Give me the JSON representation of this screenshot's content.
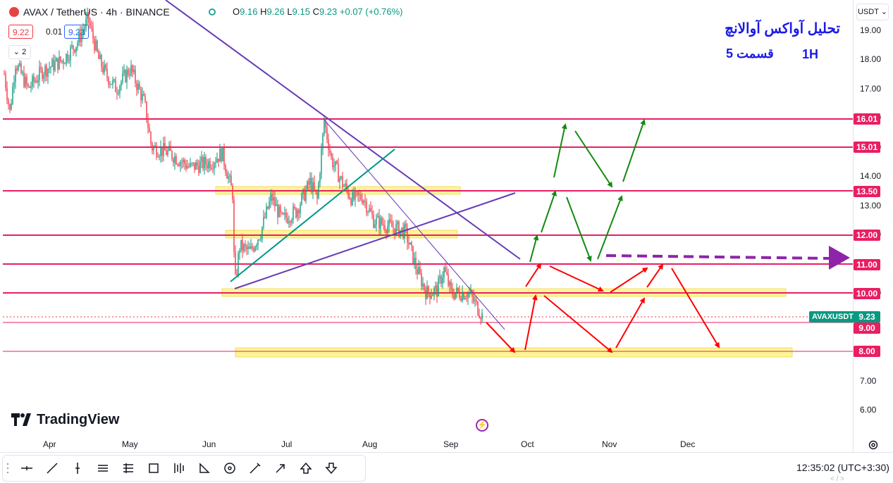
{
  "header": {
    "symbol_title": "AVAX / TetherUS · 4h · BINANCE",
    "ohlc": {
      "o_label": "O",
      "o": "9.16",
      "h_label": "H",
      "h": "9.26",
      "l_label": "L",
      "l": "9.15",
      "c_label": "C",
      "c": "9.23",
      "change": "+0.07 (+0.76%)"
    },
    "sell_price": "9.22",
    "spread": "0.01",
    "buy_price": "9.23",
    "indicators_toggle": "2",
    "currency": "USDT"
  },
  "annotations": {
    "title_fa": "تحلیل آواکس آوالانچ",
    "part_fa": "قسمت 5",
    "timeframe": "1H"
  },
  "price_axis": [
    "19.00",
    "18.00",
    "17.00",
    "16.00",
    "15.00",
    "14.00",
    "13.00",
    "12.00",
    "11.00",
    "10.00",
    "9.00",
    "8.00",
    "7.00",
    "6.00"
  ],
  "level_tags": [
    "16.01",
    "15.01",
    "13.50",
    "12.00",
    "11.00",
    "10.00",
    "9.00",
    "8.00"
  ],
  "current": {
    "symbol": "AVAXUSDT",
    "price": "9.23"
  },
  "time_axis": [
    "Apr",
    "May",
    "Jun",
    "Jul",
    "Aug",
    "Sep",
    "Oct",
    "Nov",
    "Dec"
  ],
  "brand": "TradingView",
  "clock": "12:35:02 (UTC+3:30)",
  "pager": "< / >",
  "colors": {
    "level_line": "#e91e63",
    "zone": "#fff176",
    "trend_purple": "#673ab7",
    "trend_teal": "#009688",
    "up": "#089981",
    "down": "#f23645",
    "arrow_green": "#138a13",
    "arrow_red": "#ff0000",
    "arrow_purple": "#8e24aa",
    "text_blue": "#1a1ae6"
  },
  "toolbar": {
    "tools": [
      "crosshair-icon",
      "trendline-icon",
      "vertical-line-icon",
      "parallel-channel-icon",
      "regression-icon",
      "rectangle-icon",
      "pattern-icon",
      "triangle-icon",
      "circle-icon",
      "brush-icon",
      "arrow-icon",
      "arrow-up-icon",
      "arrow-down-icon"
    ]
  }
}
